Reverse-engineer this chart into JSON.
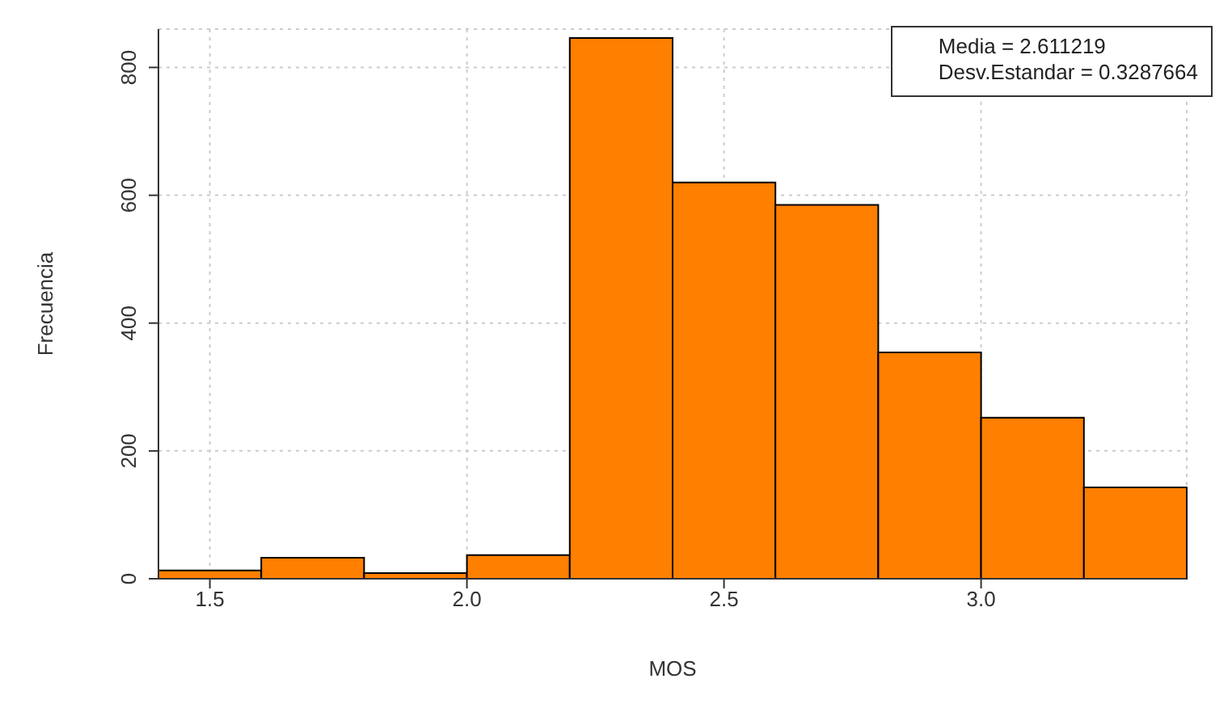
{
  "chart_data": {
    "type": "histogram",
    "xlabel": "MOS",
    "ylabel": "Frecuencia",
    "bins": [
      1.4,
      1.6,
      1.8,
      2.0,
      2.2,
      2.4,
      2.6,
      2.8,
      3.0,
      3.2,
      3.4
    ],
    "values": [
      13,
      33,
      9,
      37,
      846,
      620,
      585,
      354,
      252,
      143
    ],
    "color": "#ff7f00",
    "xlim": [
      1.4,
      3.4
    ],
    "xticks": [
      1.5,
      {
        "value": 2,
        "label": "2.0"
      },
      2.5,
      {
        "value": 3,
        "label": "3.0"
      }
    ],
    "ylim": [
      0,
      860
    ],
    "yticks": [
      0,
      200,
      400,
      600,
      800
    ],
    "grid": true,
    "annotations": [
      "Media = 2.611219",
      "Desv.Estandar = 0.3287664"
    ]
  }
}
